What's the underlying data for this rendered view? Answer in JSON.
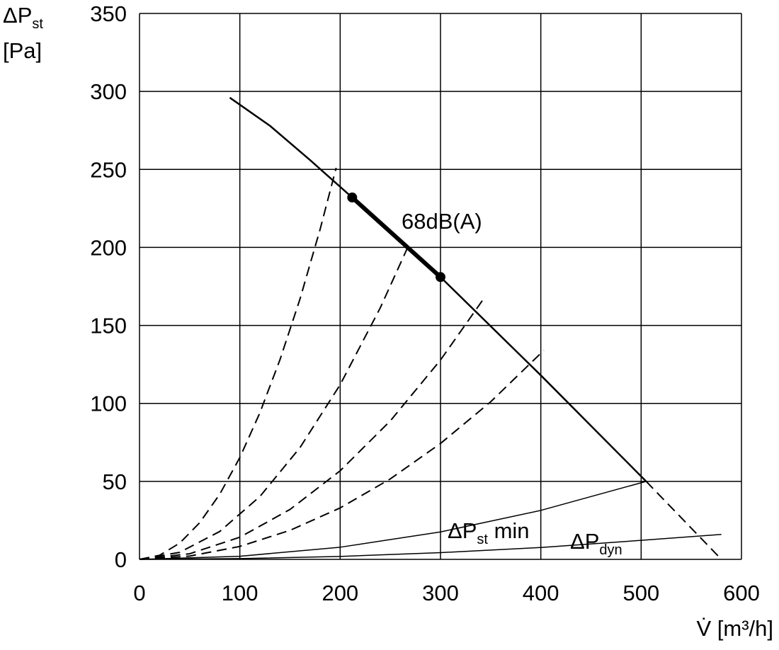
{
  "chart_data": {
    "type": "line",
    "y_label": {
      "main": "ΔP",
      "sub": "st",
      "unit": "[Pa]"
    },
    "x_label": "V̇ [m³/h]",
    "xlim": [
      0,
      600
    ],
    "xticks": [
      0,
      100,
      200,
      300,
      400,
      500,
      600
    ],
    "ylim": [
      0,
      350
    ],
    "yticks": [
      0,
      50,
      100,
      150,
      200,
      250,
      300,
      350
    ],
    "grid": true,
    "series": [
      {
        "color": "#000000",
        "style": "solid",
        "x": [
          90,
          130,
          170,
          212,
          300,
          400,
          505
        ],
        "values": [
          296,
          278,
          256,
          232,
          181,
          118,
          50
        ]
      },
      {
        "color": "#000000",
        "style": "dashed",
        "x": [
          505,
          580
        ],
        "values": [
          50,
          0
        ]
      },
      {
        "color": "#000000",
        "style": "thick",
        "x": [
          212,
          300
        ],
        "values": [
          232,
          181
        ],
        "markers": true,
        "label": {
          "main": "68dB(A)"
        }
      },
      {
        "color": "#000000",
        "style": "dashed",
        "x": [
          0,
          20,
          40,
          60,
          80,
          100,
          120,
          140,
          160,
          180,
          196
        ],
        "values": [
          0,
          2.6,
          10.4,
          23.5,
          41.8,
          65.3,
          94,
          128,
          167,
          211.6,
          251
        ]
      },
      {
        "color": "#000000",
        "style": "dashed",
        "x": [
          0,
          40,
          80,
          120,
          160,
          200,
          240,
          268
        ],
        "values": [
          0,
          4.5,
          17.9,
          40.3,
          71.7,
          112,
          161.3,
          201
        ]
      },
      {
        "color": "#000000",
        "style": "dashed",
        "x": [
          0,
          50,
          100,
          150,
          200,
          250,
          300,
          344
        ],
        "values": [
          0,
          3.6,
          14.2,
          32,
          56.8,
          88.8,
          127.8,
          168
        ]
      },
      {
        "color": "#000000",
        "style": "dashed",
        "x": [
          0,
          50,
          100,
          150,
          200,
          250,
          300,
          350,
          403
        ],
        "values": [
          0,
          2.1,
          8.3,
          18.6,
          33,
          51.6,
          74.3,
          101,
          134
        ]
      },
      {
        "color": "#000000",
        "style": "thin",
        "x": [
          0,
          100,
          200,
          300,
          400,
          505
        ],
        "values": [
          0,
          2,
          7.8,
          17.6,
          31.4,
          50
        ],
        "label": {
          "main": "ΔP",
          "sub": "st",
          "suffix": " min"
        }
      },
      {
        "color": "#000000",
        "style": "thin",
        "x": [
          0,
          100,
          200,
          300,
          400,
          500,
          580
        ],
        "values": [
          0,
          0.5,
          1.9,
          4.3,
          7.6,
          12.2,
          16
        ],
        "label": {
          "main": "ΔP",
          "sub": "dyn"
        }
      }
    ]
  }
}
